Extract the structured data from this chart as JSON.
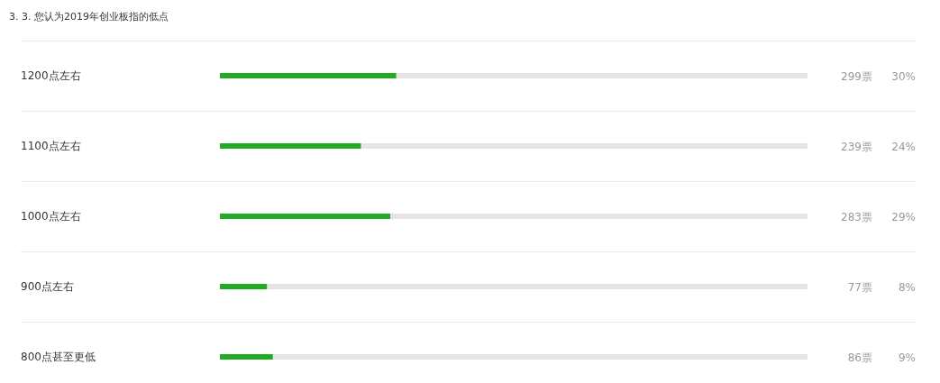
{
  "chart_data": {
    "type": "bar",
    "orientation": "horizontal",
    "title": "3. 3. 您认为2019年创业板指的低点",
    "categories": [
      "1200点左右",
      "1100点左右",
      "1000点左右",
      "900点左右",
      "800点甚至更低"
    ],
    "values": [
      30,
      24,
      29,
      8,
      9
    ],
    "color": "#22aa22",
    "value_labels": [
      "30%",
      "24%",
      "29%",
      "8%",
      "9%"
    ],
    "xlim": [
      0,
      100
    ],
    "tick_labels": "y",
    "annotations": [
      "299票",
      "239票",
      "283票",
      "77票",
      "86票"
    ]
  }
}
